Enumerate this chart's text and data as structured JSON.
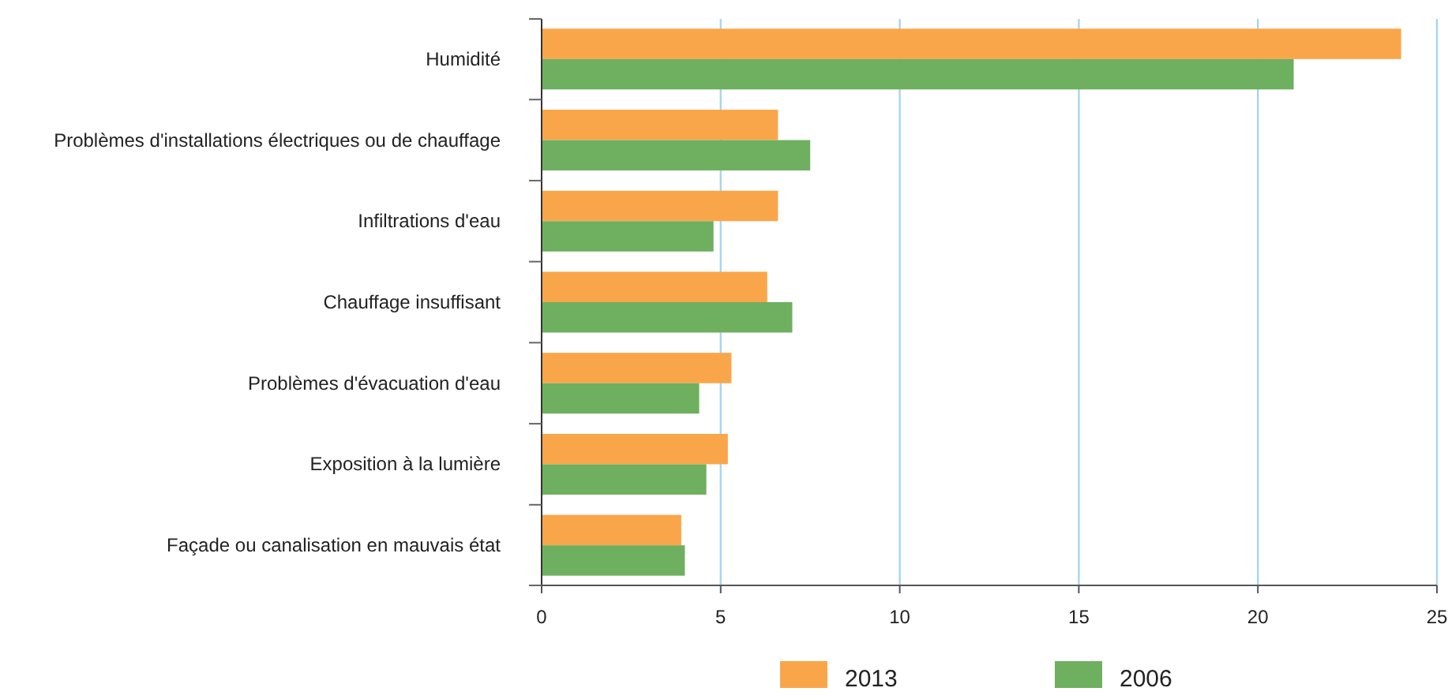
{
  "chart_data": {
    "type": "bar",
    "orientation": "horizontal",
    "categories": [
      "Humidité",
      "Problèmes d'installations électriques ou de chauffage",
      "Infiltrations d'eau",
      "Chauffage insuffisant",
      "Problèmes d'évacuation d'eau",
      "Exposition à la lumière",
      "Façade ou canalisation en mauvais état"
    ],
    "series": [
      {
        "name": "2013",
        "color": "#f9a64a",
        "values": [
          24,
          6.6,
          6.6,
          6.3,
          5.3,
          5.2,
          3.9
        ]
      },
      {
        "name": "2006",
        "color": "#6faf60",
        "values": [
          21,
          7.5,
          4.8,
          7,
          4.4,
          4.6,
          4
        ]
      }
    ],
    "xlim": [
      0,
      25
    ],
    "xticks": [
      0,
      5,
      10,
      15,
      20,
      25
    ],
    "grid": "x",
    "legend": "bottom"
  }
}
